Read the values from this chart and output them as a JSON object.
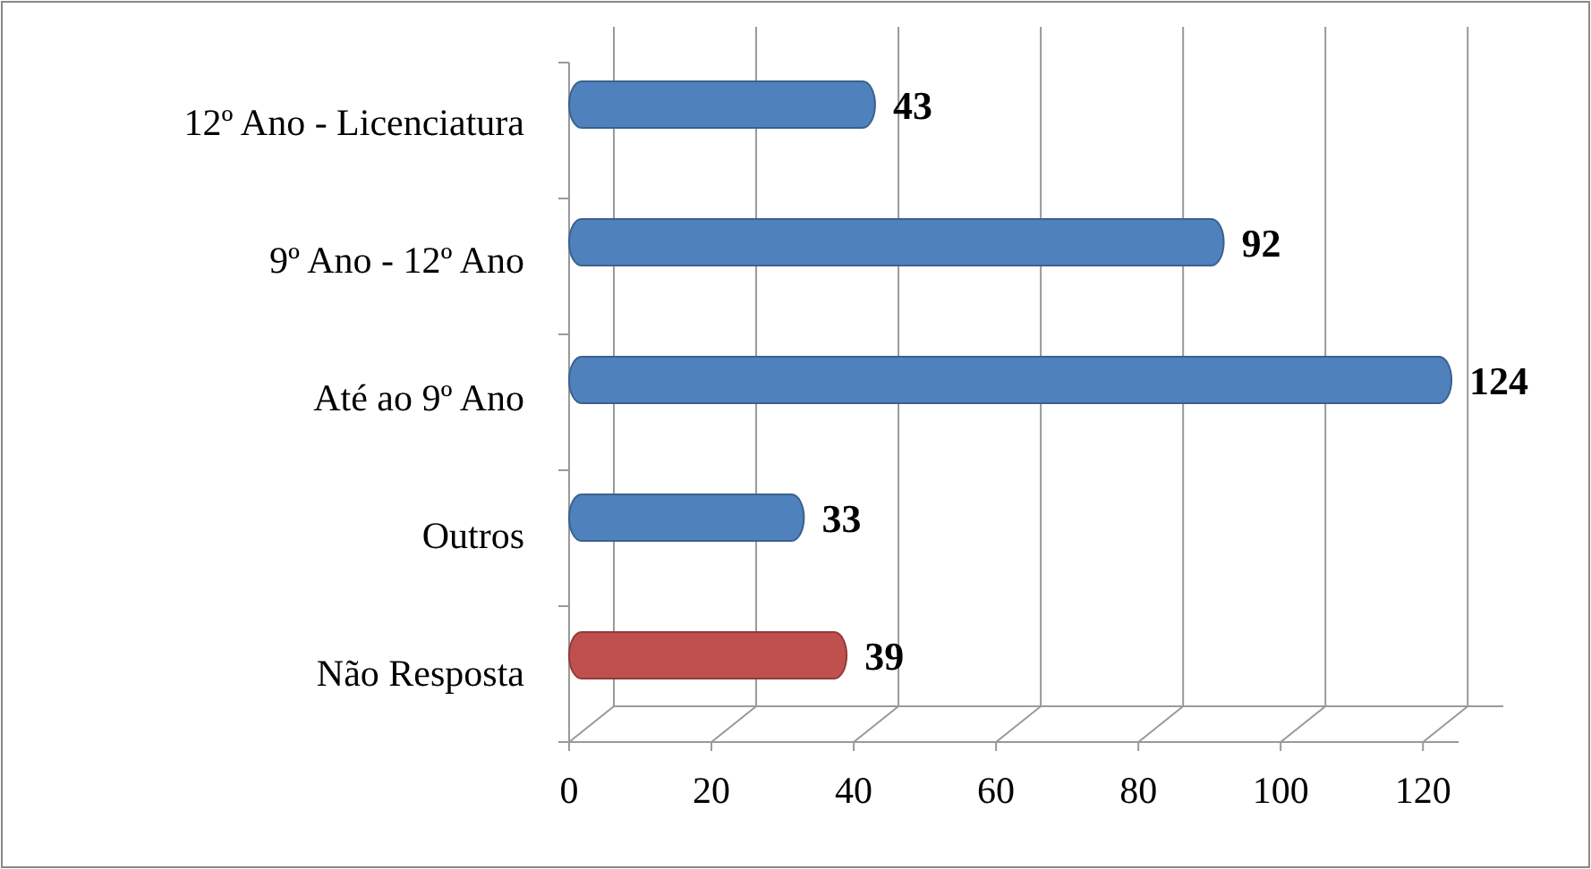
{
  "chart_data": {
    "type": "bar",
    "orientation": "horizontal",
    "categories": [
      "12º Ano - Licenciatura",
      "9º Ano - 12º Ano",
      "Até ao 9º Ano",
      "Outros",
      "Não Resposta"
    ],
    "values": [
      43,
      92,
      124,
      33,
      39
    ],
    "colors": [
      "#4f81bd",
      "#4f81bd",
      "#4f81bd",
      "#4f81bd",
      "#c0504d"
    ],
    "xlim": [
      0,
      125
    ],
    "xticks": [
      0,
      20,
      40,
      60,
      80,
      100,
      120
    ],
    "grid": "x",
    "data_labels": true
  }
}
